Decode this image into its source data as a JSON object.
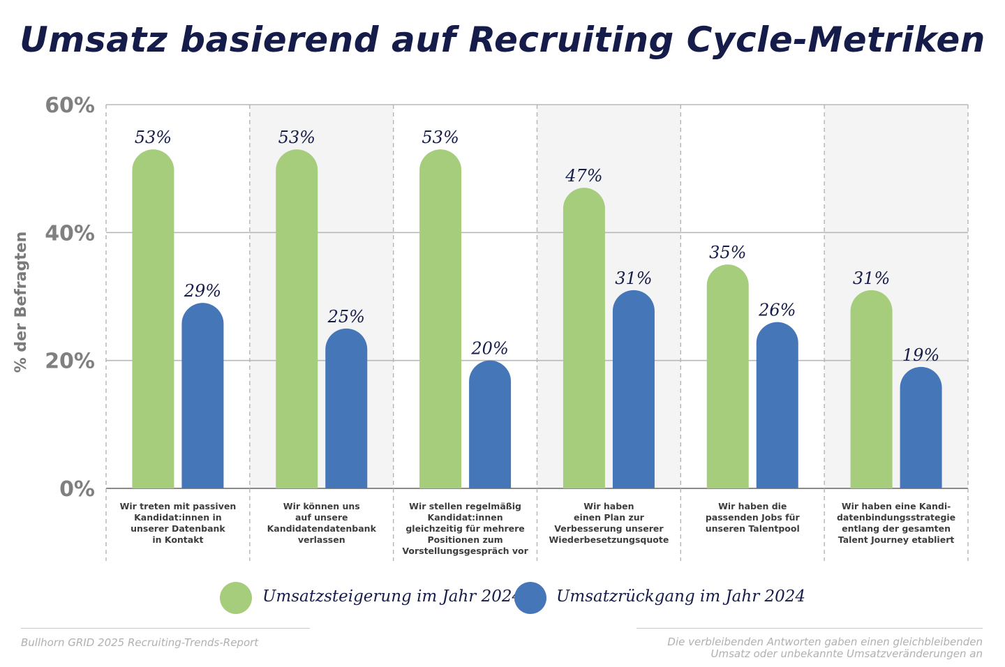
{
  "chart_data": {
    "type": "bar",
    "title": "Umsatz basierend auf Recruiting Cycle-Metriken",
    "ylabel": "% der Befragten",
    "xlabel": "",
    "ylim": [
      0,
      60
    ],
    "yticks": [
      0,
      20,
      40,
      60
    ],
    "ytick_labels": [
      "0%",
      "20%",
      "40%",
      "60%"
    ],
    "categories": [
      "Wir treten mit passiven\nKandidat:innen in\nunserer Datenbank\nin Kontakt",
      "Wir können uns\nauf unsere\nKandidatendatenbank\nverlassen",
      "Wir stellen regelmäßig\nKandidat:innen\ngleichzeitig für mehrere\nPositionen zum\nVorstellungsgespräch vor",
      "Wir haben\neinen Plan zur\nVerbesserung unserer\nWiederbesetzungsquote",
      "Wir haben die\npassenden Jobs für\nunseren Talentpool",
      "Wir haben eine Kandi-\ndatenbindungsstrategie\nentlang der gesamten\nTalent Journey etabliert"
    ],
    "series": [
      {
        "name": "Umsatzsteigerung im Jahr 2024",
        "color": "#a6cd7c",
        "values": [
          53,
          53,
          53,
          47,
          35,
          31
        ],
        "labels": [
          "53%",
          "53%",
          "53%",
          "47%",
          "35%",
          "31%"
        ]
      },
      {
        "name": "Umsatzrückgang im Jahr 2024",
        "color": "#4576b8",
        "values": [
          29,
          25,
          20,
          31,
          26,
          19
        ],
        "labels": [
          "29%",
          "25%",
          "20%",
          "31%",
          "26%",
          "19%"
        ]
      }
    ],
    "legend_position": "bottom",
    "grid": true
  },
  "footer": {
    "source": "Bullhorn GRID 2025 Recruiting-Trends-Report",
    "note_line1": "Die verbleibenden Antworten gaben einen gleichbleibenden",
    "note_line2": "Umsatz oder unbekannte Umsatzveränderungen an"
  },
  "colors": {
    "title": "#161c4a",
    "band": "#f4f4f4",
    "grid": "#b8b8b8",
    "axis": "#8a8a8a"
  }
}
